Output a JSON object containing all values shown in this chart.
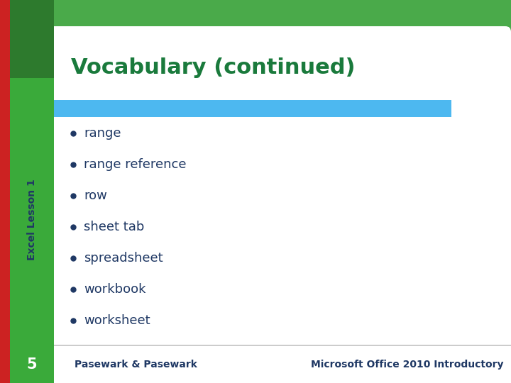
{
  "title": "Vocabulary (continued)",
  "title_color": "#1a7a3c",
  "title_fontsize": 22,
  "bullet_items": [
    "range",
    "range reference",
    "row",
    "sheet tab",
    "spreadsheet",
    "workbook",
    "worksheet"
  ],
  "bullet_color": "#1f3864",
  "bullet_fontsize": 13,
  "left_sidebar_color": "#3aaa3a",
  "left_sidebar_top_color": "#2d7a2d",
  "red_strip_color": "#cc2222",
  "blue_bar_color": "#4db8f0",
  "bottom_bar_color": "#ffffff",
  "bottom_number": "5",
  "bottom_left_text": "Pasewark & Pasewark",
  "bottom_right_text": "Microsoft Office 2010 Introductory",
  "bottom_text_color": "#1f3864",
  "sidebar_label": "Excel Lesson 1",
  "sidebar_label_color": "#1f3864",
  "slide_bg": "#ffffff",
  "outer_bg": "#c8dfc8",
  "outer_bg2": "#4aaa4a"
}
